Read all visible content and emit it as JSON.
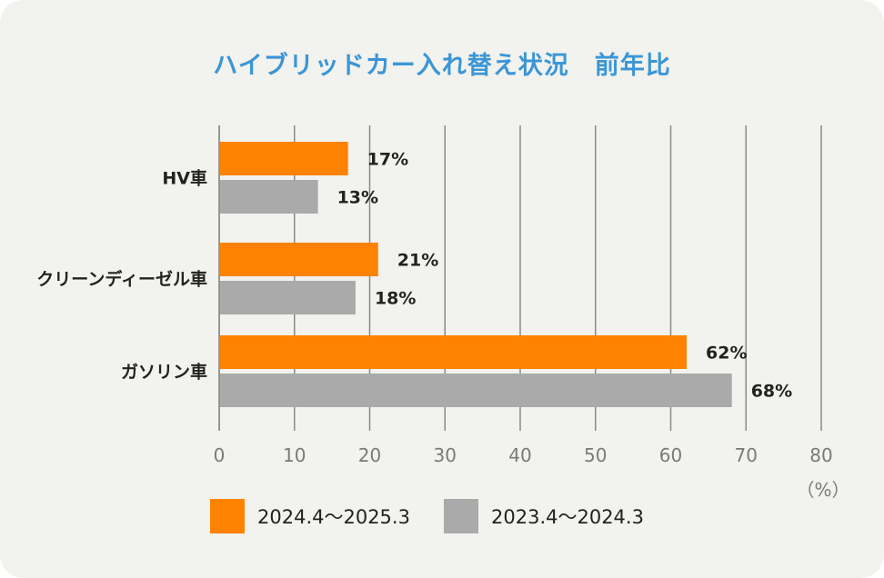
{
  "chart_data": {
    "type": "bar",
    "orientation": "horizontal",
    "title": "ハイブリッドカー入れ替え状況　前年比",
    "categories": [
      "HV車",
      "クリーンディーゼル車",
      "ガソリン車"
    ],
    "series": [
      {
        "name": "2024.4～2025.3",
        "color": "#ff8200",
        "values": [
          17,
          21,
          62
        ],
        "labels": [
          "17%",
          "21%",
          "62%"
        ]
      },
      {
        "name": "2023.4～2024.3",
        "color": "#aaaaaa",
        "values": [
          13,
          18,
          68
        ],
        "labels": [
          "13%",
          "18%",
          "68%"
        ]
      }
    ],
    "xlim": [
      0,
      80
    ],
    "xticks": [
      "0",
      "10",
      "20",
      "30",
      "40",
      "50",
      "60",
      "70",
      "80"
    ],
    "xlabel": "",
    "unit_label": "（%）",
    "grid": true,
    "legend_position": "bottom"
  }
}
